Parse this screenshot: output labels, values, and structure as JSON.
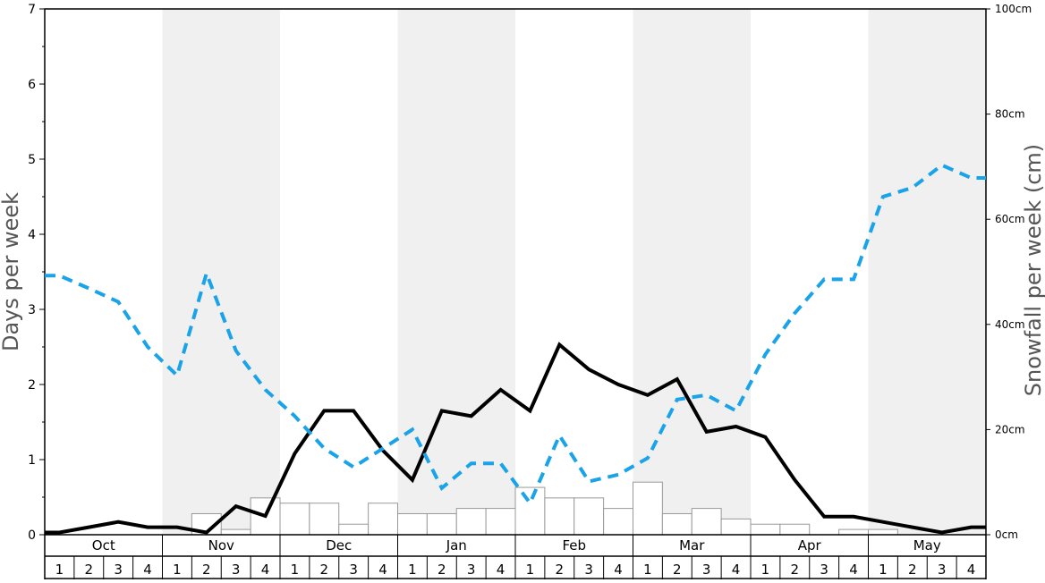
{
  "chart_data": {
    "type": "bar",
    "xlabel": "",
    "ylabel_left": "Days per week",
    "ylabel_right": "Snowfall per week (cm)",
    "y_left": {
      "min": 0,
      "max": 7,
      "ticks": [
        "0",
        "1",
        "2",
        "3",
        "4",
        "5",
        "6",
        "7"
      ]
    },
    "y_right": {
      "min": 0,
      "max": 100,
      "ticks": [
        "0cm",
        "20cm",
        "40cm",
        "60cm",
        "80cm",
        "100cm"
      ]
    },
    "months": [
      "Oct",
      "Nov",
      "Dec",
      "Jan",
      "Feb",
      "Mar",
      "Apr",
      "May"
    ],
    "weeks": [
      "1",
      "2",
      "3",
      "4"
    ],
    "shaded_months": [
      "Nov",
      "Jan",
      "Mar",
      "May"
    ],
    "grid": false,
    "series": [
      {
        "kind": "bars",
        "axis": "right",
        "values": [
          0,
          0,
          0,
          0,
          0,
          4,
          1,
          7,
          6,
          6,
          2,
          6,
          4,
          4,
          5,
          5,
          9,
          7,
          7,
          5,
          10,
          4,
          5,
          3,
          2,
          2,
          0,
          1,
          1,
          0,
          0,
          0
        ]
      },
      {
        "kind": "line",
        "style": "solid",
        "color": "#000000",
        "axis": "left",
        "values": [
          0.03,
          0.1,
          0.17,
          0.1,
          0.1,
          0.03,
          0.38,
          0.25,
          1.08,
          1.65,
          1.65,
          1.12,
          0.73,
          1.65,
          1.58,
          1.93,
          1.65,
          2.53,
          2.2,
          2.0,
          1.86,
          2.07,
          1.37,
          1.44,
          1.3,
          0.73,
          0.24,
          0.24,
          0.17,
          0.1,
          0.03,
          0.1
        ]
      },
      {
        "kind": "line",
        "style": "dashed",
        "color": "#1aa3e8",
        "axis": "left",
        "values": [
          3.45,
          3.28,
          3.1,
          2.5,
          2.12,
          3.48,
          2.45,
          1.93,
          1.58,
          1.15,
          0.9,
          1.15,
          1.4,
          0.62,
          0.95,
          0.95,
          0.42,
          1.32,
          0.71,
          0.8,
          1.02,
          1.8,
          1.86,
          1.65,
          2.4,
          2.95,
          3.4,
          3.4,
          4.5,
          4.62,
          4.92,
          4.75
        ]
      }
    ]
  }
}
